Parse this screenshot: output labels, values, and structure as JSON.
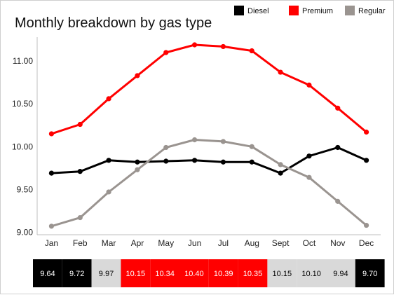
{
  "chart_data": {
    "type": "line",
    "title": "Monthly breakdown by gas type",
    "xlabel": "",
    "ylabel": "",
    "categories": [
      "Jan",
      "Feb",
      "Mar",
      "Apr",
      "May",
      "Jun",
      "Jul",
      "Aug",
      "Sept",
      "Oct",
      "Nov",
      "Dec"
    ],
    "ylim": [
      8.97,
      11.28
    ],
    "yticks": [
      "9.00",
      "9.50",
      "10.00",
      "10.50",
      "11.00"
    ],
    "grid": false,
    "legend_position": "top-right",
    "series": [
      {
        "name": "Diesel",
        "color": "#000000",
        "values": [
          9.69,
          9.71,
          9.84,
          9.82,
          9.83,
          9.84,
          9.82,
          9.82,
          9.69,
          9.89,
          9.99,
          9.84
        ]
      },
      {
        "name": "Premium",
        "color": "#ff0000",
        "values": [
          10.15,
          10.26,
          10.56,
          10.83,
          11.1,
          11.19,
          11.17,
          11.12,
          10.87,
          10.72,
          10.45,
          10.17
        ]
      },
      {
        "name": "Regular",
        "color": "#9a9490",
        "values": [
          9.07,
          9.17,
          9.47,
          9.73,
          9.99,
          10.08,
          10.06,
          10.0,
          9.79,
          9.64,
          9.36,
          9.08
        ]
      }
    ],
    "table_row": {
      "values": [
        "9.64",
        "9.72",
        "9.97",
        "10.15",
        "10.34",
        "10.40",
        "10.39",
        "10.35",
        "10.15",
        "10.10",
        "9.94",
        "9.70"
      ],
      "fills": [
        "#000000",
        "#000000",
        "#d9d9d9",
        "#ff0000",
        "#ff0000",
        "#ff0000",
        "#ff0000",
        "#ff0000",
        "#d9d9d9",
        "#d9d9d9",
        "#d9d9d9",
        "#000000"
      ],
      "text_colors": [
        "#ffffff",
        "#ffffff",
        "#000000",
        "#ffffff",
        "#ffffff",
        "#ffffff",
        "#ffffff",
        "#ffffff",
        "#000000",
        "#000000",
        "#000000",
        "#ffffff"
      ]
    }
  }
}
